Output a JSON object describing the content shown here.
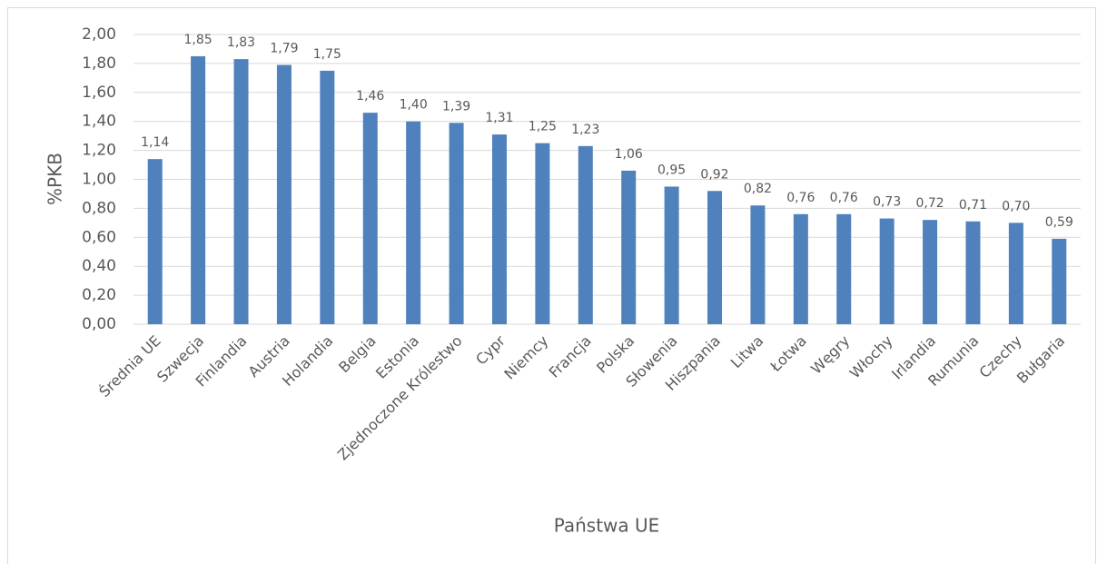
{
  "chart_data": {
    "type": "bar",
    "categories": [
      "Średnia UE",
      "Szwecja",
      "Finlandia",
      "Austria",
      "Holandia",
      "Belgia",
      "Estonia",
      "Zjednoczone Królestwo",
      "Cypr",
      "Niemcy",
      "Francja",
      "Polska",
      "Słowenia",
      "Hiszpania",
      "Litwa",
      "Łotwa",
      "Węgry",
      "Włochy",
      "Irlandia",
      "Rumunia",
      "Czechy",
      "Bułgaria"
    ],
    "values": [
      1.14,
      1.85,
      1.83,
      1.79,
      1.75,
      1.46,
      1.4,
      1.39,
      1.31,
      1.25,
      1.23,
      1.06,
      0.95,
      0.92,
      0.82,
      0.76,
      0.76,
      0.73,
      0.72,
      0.71,
      0.7,
      0.59
    ],
    "value_labels": [
      "1,14",
      "1,85",
      "1,83",
      "1,79",
      "1,75",
      "1,46",
      "1,40",
      "1,39",
      "1,31",
      "1,25",
      "1,23",
      "1,06",
      "0,95",
      "0,92",
      "0,82",
      "0,76",
      "0,76",
      "0,73",
      "0,72",
      "0,71",
      "0,70",
      "0,59"
    ],
    "color": "#4f81bd",
    "ylim": [
      0,
      2
    ],
    "yticks": [
      {
        "value": 0,
        "label": "0,00"
      },
      {
        "value": 0.2,
        "label": "0,20"
      },
      {
        "value": 0.4,
        "label": "0,40"
      },
      {
        "value": 0.6,
        "label": "0,60"
      },
      {
        "value": 0.8,
        "label": "0,80"
      },
      {
        "value": 1.0,
        "label": "1,00"
      },
      {
        "value": 1.2,
        "label": "1,20"
      },
      {
        "value": 1.4,
        "label": "1,40"
      },
      {
        "value": 1.6,
        "label": "1,60"
      },
      {
        "value": 1.8,
        "label": "1,80"
      },
      {
        "value": 2.0,
        "label": "2,00"
      }
    ],
    "grid": true,
    "xlabel": "Państwa UE",
    "ylabel": "%PKB"
  }
}
